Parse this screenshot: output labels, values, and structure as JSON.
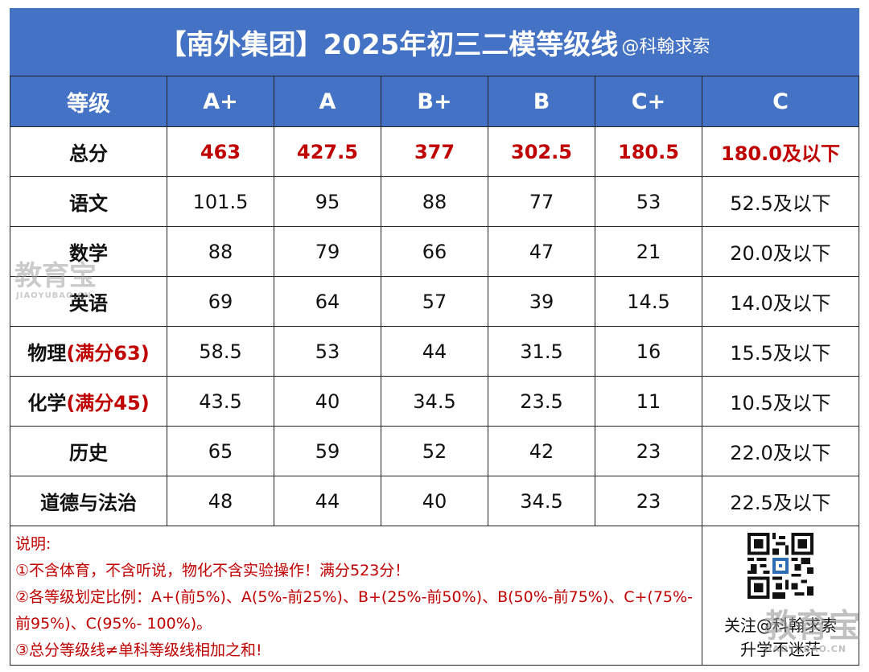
{
  "header": {
    "title": "【南外集团】2025年初三二模等级线",
    "subtitle": "@科翰求索"
  },
  "table": {
    "corner_label": "等级",
    "levels": [
      "A+",
      "A",
      "B+",
      "B",
      "C+",
      "C"
    ],
    "rows": [
      {
        "subject": "总分",
        "full": "",
        "values": [
          "463",
          "427.5",
          "377",
          "302.5",
          "180.5",
          "180.0及以下"
        ]
      },
      {
        "subject": "语文",
        "full": "",
        "values": [
          "101.5",
          "95",
          "88",
          "77",
          "53",
          "52.5及以下"
        ]
      },
      {
        "subject": "数学",
        "full": "",
        "values": [
          "88",
          "79",
          "66",
          "47",
          "21",
          "20.0及以下"
        ]
      },
      {
        "subject": "英语",
        "full": "",
        "values": [
          "69",
          "64",
          "57",
          "39",
          "14.5",
          "14.0及以下"
        ]
      },
      {
        "subject": "物理",
        "full": "(满分63)",
        "values": [
          "58.5",
          "53",
          "44",
          "31.5",
          "16",
          "15.5及以下"
        ]
      },
      {
        "subject": "化学",
        "full": "(满分45)",
        "values": [
          "43.5",
          "40",
          "34.5",
          "23.5",
          "11",
          "10.5及以下"
        ]
      },
      {
        "subject": "历史",
        "full": "",
        "values": [
          "65",
          "59",
          "52",
          "42",
          "23",
          "22.0及以下"
        ]
      },
      {
        "subject": "道德与法治",
        "full": "",
        "values": [
          "48",
          "44",
          "40",
          "34.5",
          "23",
          "22.5及以下"
        ]
      }
    ]
  },
  "notes": {
    "heading": "说明:",
    "lines": [
      "①不含体育，不含听说，物化不含实验操作！满分523分！",
      "②各等级划定比例：A+(前5%)、A(5%-前25%)、B+(25%-前50%)、B(50%-前75%)、C+(75%-前95%)、C(95%- 100%)。",
      "③总分等级线≠单科等级线相加之和!"
    ]
  },
  "qr": {
    "caption_1": "关注@科翰求索",
    "caption_2": "升学不迷茫"
  },
  "watermark": {
    "text": "教育宝",
    "sub": "JIAOYUBAO.CN"
  }
}
